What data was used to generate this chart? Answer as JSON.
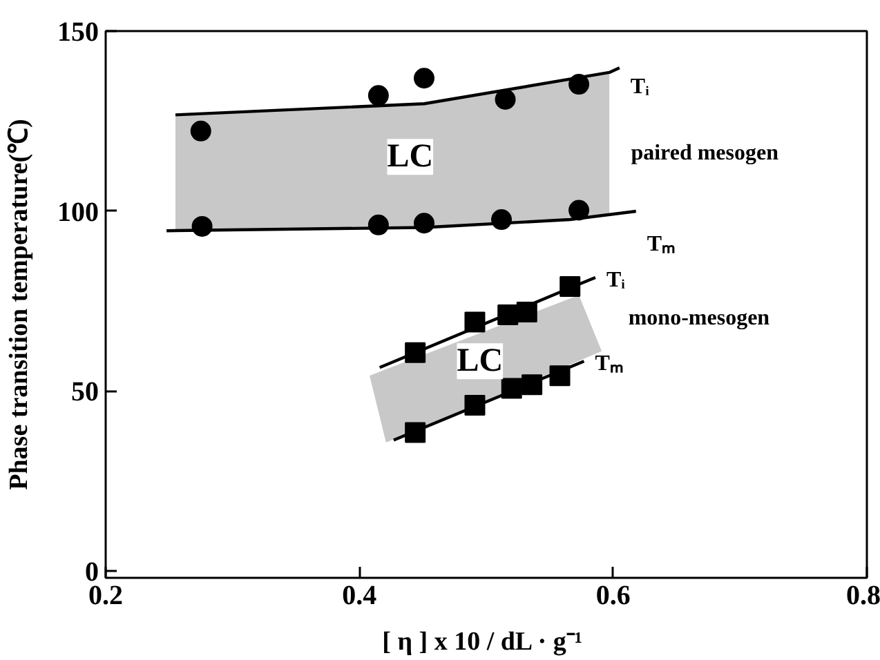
{
  "chart_data": {
    "type": "scatter",
    "xlabel": "[ η ] x 10 / dL  · g⁻¹",
    "ylabel": "Phase transition temperature(℃)",
    "xlim": [
      0.2,
      0.8
    ],
    "ylim": [
      -2,
      150
    ],
    "xticks": [
      0.2,
      0.4,
      0.6,
      0.8
    ],
    "yticks": [
      0,
      50,
      100,
      150
    ],
    "grid": false,
    "series": [
      {
        "type": "line",
        "name": "Tᵢ",
        "color": "#000000",
        "marker": "none",
        "x": [
          0.255,
          0.451,
          0.597,
          0.605
        ],
        "values": [
          126.7,
          129.8,
          138.5,
          139.8
        ],
        "lower": [
          94.6,
          95.4,
          98.6,
          null
        ],
        "upper": [
          126.7,
          129.8,
          138.5,
          null
        ]
      },
      {
        "type": "line",
        "name": "Tₘ",
        "color": "#000000",
        "marker": "none",
        "x": [
          0.248,
          0.451,
          0.566,
          0.618
        ],
        "values": [
          94.5,
          95.4,
          97.6,
          99.9
        ]
      },
      {
        "type": "line",
        "name": "Tᵢ",
        "color": "#000000",
        "marker": "none",
        "x": [
          0.408,
          0.416,
          0.421,
          0.573,
          0.586,
          0.591
        ],
        "values": [
          null,
          56.5,
          57.2,
          79.6,
          81.5,
          null
        ],
        "lower": [
          54.2,
          42.8,
          35.6,
          58.3,
          60.3,
          61.0
        ],
        "upper": [
          54.2,
          55.3,
          56.0,
          76.6,
          65.3,
          61.0
        ]
      },
      {
        "type": "line",
        "name": "Tₘ",
        "color": "#000000",
        "marker": "none",
        "x": [
          0.427,
          0.577
        ],
        "values": [
          36.3,
          58.2
        ]
      },
      {
        "color": "#000000",
        "marker": "circle",
        "x": [
          0.275,
          0.415,
          0.451,
          0.515,
          0.573
        ],
        "values": [
          122.2,
          132.1,
          136.9,
          131.0,
          135.2
        ]
      },
      {
        "color": "#000000",
        "marker": "circle",
        "x": [
          0.276,
          0.415,
          0.451,
          0.512,
          0.573
        ],
        "values": [
          95.7,
          96.1,
          96.6,
          97.6,
          100.2
        ]
      },
      {
        "color": "#000000",
        "marker": "square",
        "x": [
          0.444,
          0.491,
          0.517,
          0.532,
          0.566
        ],
        "values": [
          60.6,
          69.1,
          71.1,
          71.9,
          79.0
        ]
      },
      {
        "color": "#000000",
        "marker": "square",
        "x": [
          0.444,
          0.491,
          0.52,
          0.536,
          0.558
        ],
        "values": [
          38.4,
          46.0,
          50.7,
          51.7,
          54.2
        ]
      }
    ],
    "annotations": [
      {
        "text": "LC",
        "x": 0.44,
        "y": 115
      },
      {
        "text": "LC",
        "x": 0.495,
        "y": 58.2
      },
      "paired mesogen",
      "mono-mesogen"
    ]
  }
}
